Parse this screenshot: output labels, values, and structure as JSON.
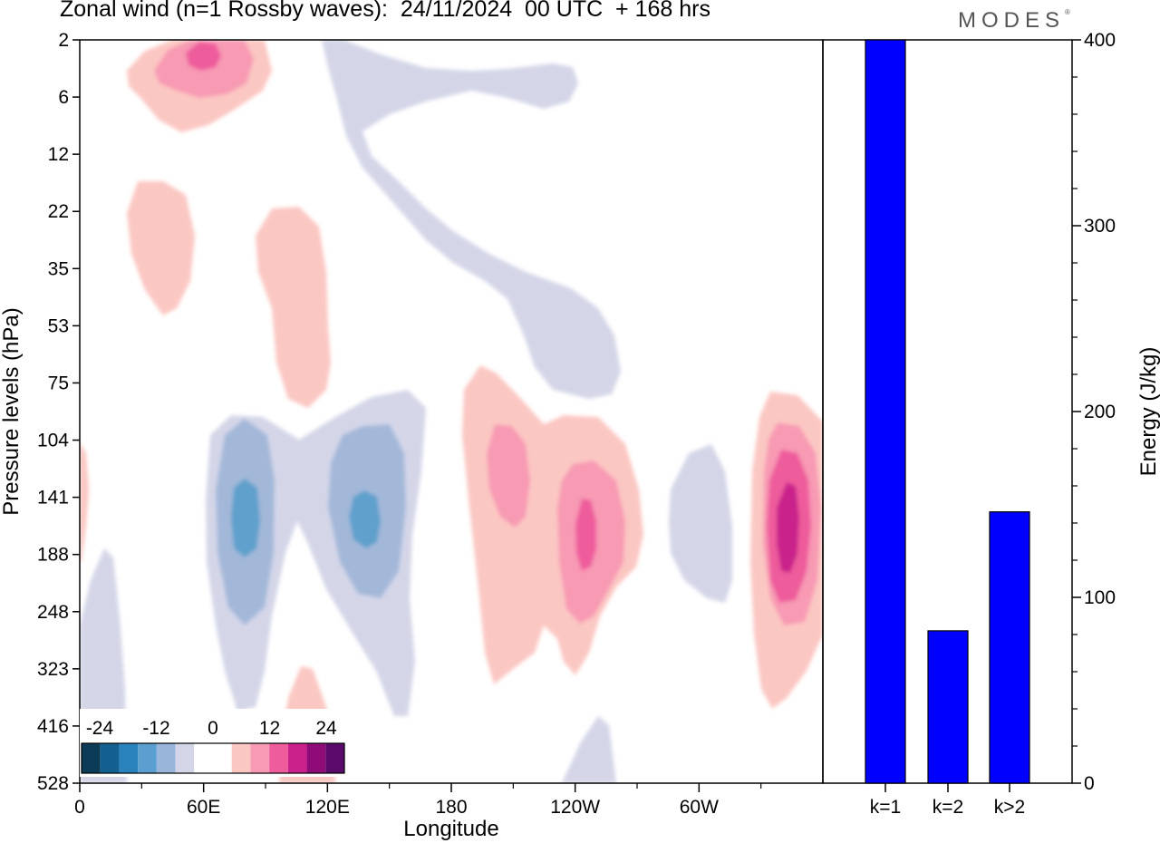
{
  "title": "Zonal wind (n=1 Rossby waves):  24/11/2024  00 UTC  + 168 hrs",
  "logo": "MODES",
  "logo_mark": "®",
  "chart_data": [
    {
      "type": "heatmap",
      "title": "Zonal wind (n=1 Rossby waves):  24/11/2024  00 UTC  + 168 hrs",
      "xlabel": "Longitude",
      "ylabel": "Pressure levels (hPa)",
      "x_ticks": [
        "0",
        "60E",
        "120E",
        "180",
        "120W",
        "60W"
      ],
      "y_ticks": [
        "2",
        "6",
        "12",
        "22",
        "35",
        "53",
        "75",
        "104",
        "141",
        "188",
        "248",
        "323",
        "416",
        "528"
      ],
      "colorbar": {
        "labels": [
          "-24",
          "-12",
          "0",
          "12",
          "24"
        ],
        "colors": [
          "#0c3b57",
          "#135f8f",
          "#2a82bd",
          "#5a9fcf",
          "#99b5da",
          "#d4d6e8",
          "#ffffff",
          "#ffffff",
          "#fbc7c2",
          "#f89ab4",
          "#ee5c9c",
          "#c9208a",
          "#8e0b78",
          "#5a0a6b"
        ]
      },
      "regions": [
        {
          "sign": "positive",
          "level": 2,
          "lon": 50,
          "pressure": 4
        },
        {
          "sign": "negative",
          "level": 3,
          "lon": 80,
          "pressure": 160
        },
        {
          "sign": "negative",
          "level": 3,
          "lon": 133,
          "pressure": 150
        },
        {
          "sign": "positive",
          "level": 2,
          "lon": 205,
          "pressure": 125
        },
        {
          "sign": "positive",
          "level": 3,
          "lon": 240,
          "pressure": 175
        },
        {
          "sign": "positive",
          "level": 4,
          "lon": 337,
          "pressure": 170
        }
      ]
    },
    {
      "type": "bar",
      "categories": [
        "k=1",
        "k=2",
        "k>2"
      ],
      "values": [
        400,
        82,
        146
      ],
      "ylabel": "Energy (J/kg)",
      "ylim": [
        0,
        400
      ],
      "y_ticks": [
        "0",
        "100",
        "200",
        "300",
        "400"
      ],
      "bar_color": "#0000ff"
    }
  ]
}
